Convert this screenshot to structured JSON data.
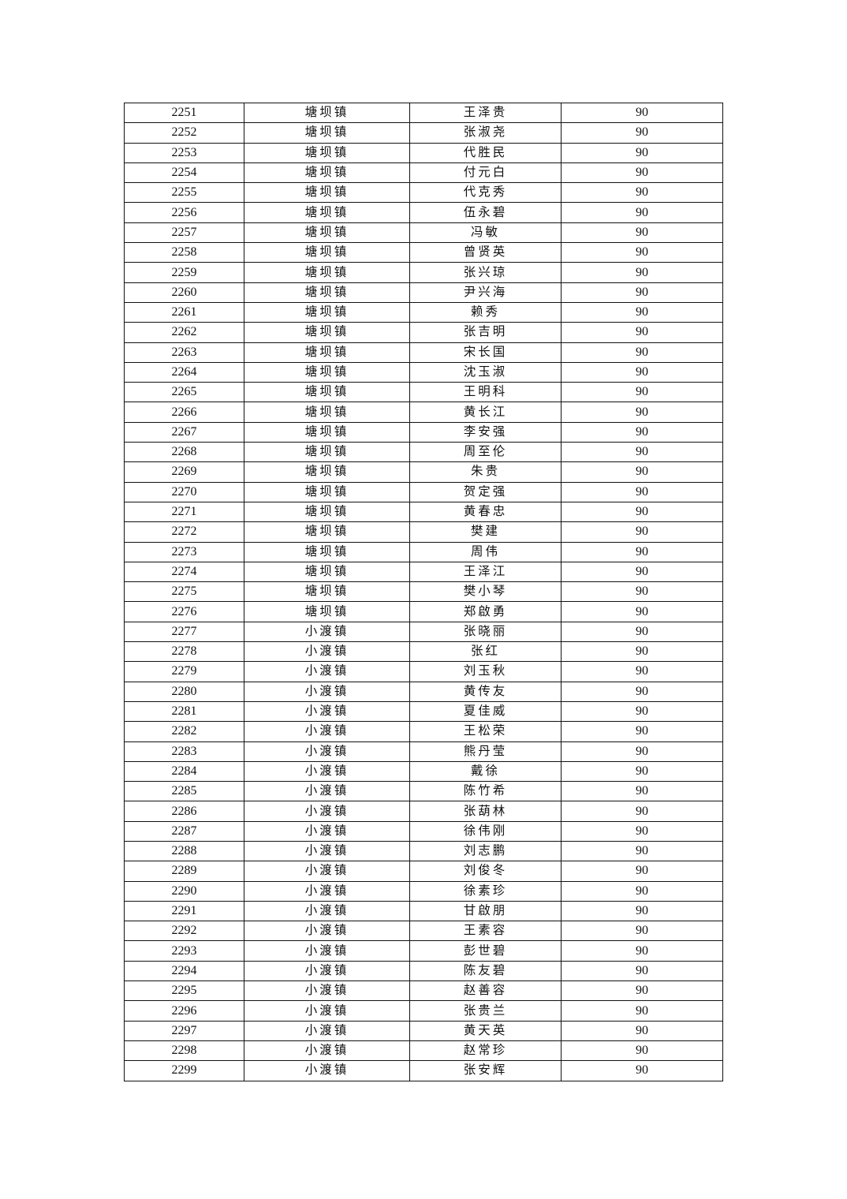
{
  "table": {
    "rows": [
      [
        "2251",
        "塘坝镇",
        "王泽贵",
        "90"
      ],
      [
        "2252",
        "塘坝镇",
        "张淑尧",
        "90"
      ],
      [
        "2253",
        "塘坝镇",
        "代胜民",
        "90"
      ],
      [
        "2254",
        "塘坝镇",
        "付元白",
        "90"
      ],
      [
        "2255",
        "塘坝镇",
        "代克秀",
        "90"
      ],
      [
        "2256",
        "塘坝镇",
        "伍永碧",
        "90"
      ],
      [
        "2257",
        "塘坝镇",
        "冯敏",
        "90"
      ],
      [
        "2258",
        "塘坝镇",
        "曾贤英",
        "90"
      ],
      [
        "2259",
        "塘坝镇",
        "张兴琼",
        "90"
      ],
      [
        "2260",
        "塘坝镇",
        "尹兴海",
        "90"
      ],
      [
        "2261",
        "塘坝镇",
        "赖秀",
        "90"
      ],
      [
        "2262",
        "塘坝镇",
        "张吉明",
        "90"
      ],
      [
        "2263",
        "塘坝镇",
        "宋长国",
        "90"
      ],
      [
        "2264",
        "塘坝镇",
        "沈玉淑",
        "90"
      ],
      [
        "2265",
        "塘坝镇",
        "王明科",
        "90"
      ],
      [
        "2266",
        "塘坝镇",
        "黄长江",
        "90"
      ],
      [
        "2267",
        "塘坝镇",
        "李安强",
        "90"
      ],
      [
        "2268",
        "塘坝镇",
        "周至伦",
        "90"
      ],
      [
        "2269",
        "塘坝镇",
        "朱贵",
        "90"
      ],
      [
        "2270",
        "塘坝镇",
        "贺定强",
        "90"
      ],
      [
        "2271",
        "塘坝镇",
        "黄春忠",
        "90"
      ],
      [
        "2272",
        "塘坝镇",
        "樊建",
        "90"
      ],
      [
        "2273",
        "塘坝镇",
        "周伟",
        "90"
      ],
      [
        "2274",
        "塘坝镇",
        "王泽江",
        "90"
      ],
      [
        "2275",
        "塘坝镇",
        "樊小琴",
        "90"
      ],
      [
        "2276",
        "塘坝镇",
        "郑啟勇",
        "90"
      ],
      [
        "2277",
        "小渡镇",
        "张晓丽",
        "90"
      ],
      [
        "2278",
        "小渡镇",
        "张红",
        "90"
      ],
      [
        "2279",
        "小渡镇",
        "刘玉秋",
        "90"
      ],
      [
        "2280",
        "小渡镇",
        "黄传友",
        "90"
      ],
      [
        "2281",
        "小渡镇",
        "夏佳威",
        "90"
      ],
      [
        "2282",
        "小渡镇",
        "王松荣",
        "90"
      ],
      [
        "2283",
        "小渡镇",
        "熊丹莹",
        "90"
      ],
      [
        "2284",
        "小渡镇",
        "戴徐",
        "90"
      ],
      [
        "2285",
        "小渡镇",
        "陈竹希",
        "90"
      ],
      [
        "2286",
        "小渡镇",
        "张葫林",
        "90"
      ],
      [
        "2287",
        "小渡镇",
        "徐伟刚",
        "90"
      ],
      [
        "2288",
        "小渡镇",
        "刘志鹏",
        "90"
      ],
      [
        "2289",
        "小渡镇",
        "刘俊冬",
        "90"
      ],
      [
        "2290",
        "小渡镇",
        "徐素珍",
        "90"
      ],
      [
        "2291",
        "小渡镇",
        "甘啟朋",
        "90"
      ],
      [
        "2292",
        "小渡镇",
        "王素容",
        "90"
      ],
      [
        "2293",
        "小渡镇",
        "彭世碧",
        "90"
      ],
      [
        "2294",
        "小渡镇",
        "陈友碧",
        "90"
      ],
      [
        "2295",
        "小渡镇",
        "赵善容",
        "90"
      ],
      [
        "2296",
        "小渡镇",
        "张贵兰",
        "90"
      ],
      [
        "2297",
        "小渡镇",
        "黄天英",
        "90"
      ],
      [
        "2298",
        "小渡镇",
        "赵常珍",
        "90"
      ],
      [
        "2299",
        "小渡镇",
        "张安辉",
        "90"
      ]
    ]
  }
}
